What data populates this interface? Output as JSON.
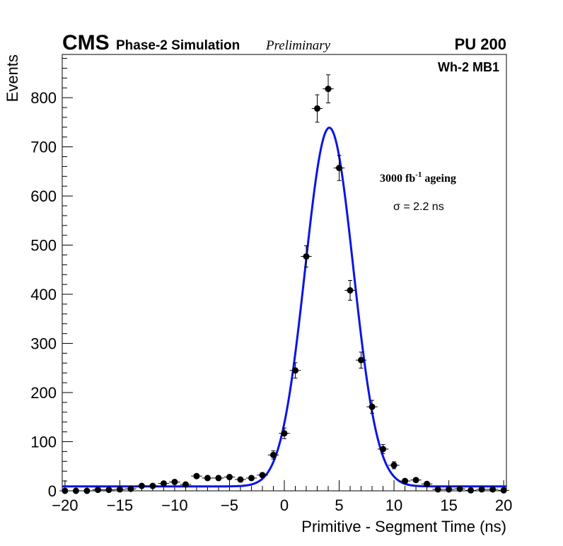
{
  "header": {
    "experiment": "CMS",
    "subtitle": "Phase-2 Simulation",
    "status": "Preliminary",
    "pileup": "PU 200"
  },
  "chart_data": {
    "type": "scatter",
    "title": "",
    "xlabel": "Primitive - Segment Time (ns)",
    "ylabel": "Events",
    "xlim": [
      -20.25,
      20.25
    ],
    "ylim": [
      0,
      888
    ],
    "xticks": [
      -20,
      -15,
      -10,
      -5,
      0,
      5,
      10,
      15,
      20
    ],
    "xtick_labels": [
      "−20",
      "−15",
      "−10",
      "−5",
      "0",
      "5",
      "10",
      "15",
      "20"
    ],
    "yticks": [
      0,
      100,
      200,
      300,
      400,
      500,
      600,
      700,
      800
    ],
    "ytick_labels": [
      "0",
      "100",
      "200",
      "300",
      "400",
      "500",
      "600",
      "700",
      "800"
    ],
    "grid": false,
    "annotations": {
      "region": "Wh-2 MB1",
      "ageing_prefix": "3000 fb",
      "ageing_exponent": "-1",
      "ageing_suffix": " ageing",
      "sigma": "σ = 2.2 ns"
    },
    "series": [
      {
        "kind": "points",
        "x_half_width": 0.5,
        "points": [
          {
            "x": -20,
            "y": 0,
            "err": 0
          },
          {
            "x": -19,
            "y": 0,
            "err": 0
          },
          {
            "x": -18,
            "y": 0,
            "err": 0
          },
          {
            "x": -17,
            "y": 2,
            "err": 1.4
          },
          {
            "x": -16,
            "y": 2,
            "err": 1.4
          },
          {
            "x": -15,
            "y": 3,
            "err": 1.7
          },
          {
            "x": -14,
            "y": 4,
            "err": 2
          },
          {
            "x": -13,
            "y": 10,
            "err": 3.2
          },
          {
            "x": -12,
            "y": 10,
            "err": 3.2
          },
          {
            "x": -11,
            "y": 15,
            "err": 3.9
          },
          {
            "x": -10,
            "y": 18,
            "err": 4.2
          },
          {
            "x": -9,
            "y": 13,
            "err": 3.6
          },
          {
            "x": -8,
            "y": 30,
            "err": 5.5
          },
          {
            "x": -7,
            "y": 26,
            "err": 5.1
          },
          {
            "x": -6,
            "y": 26,
            "err": 5.1
          },
          {
            "x": -5,
            "y": 28,
            "err": 5.3
          },
          {
            "x": -4,
            "y": 23,
            "err": 4.8
          },
          {
            "x": -3,
            "y": 26,
            "err": 5.1
          },
          {
            "x": -2,
            "y": 32,
            "err": 5.7
          },
          {
            "x": -1,
            "y": 73,
            "err": 8.5
          },
          {
            "x": 0,
            "y": 117,
            "err": 10.8
          },
          {
            "x": 1,
            "y": 245,
            "err": 15.7
          },
          {
            "x": 2,
            "y": 477,
            "err": 21.8
          },
          {
            "x": 3,
            "y": 778,
            "err": 27.9
          },
          {
            "x": 4,
            "y": 818,
            "err": 28.6
          },
          {
            "x": 5,
            "y": 657,
            "err": 25.6
          },
          {
            "x": 6,
            "y": 408,
            "err": 20.2
          },
          {
            "x": 7,
            "y": 266,
            "err": 16.3
          },
          {
            "x": 8,
            "y": 171,
            "err": 13.1
          },
          {
            "x": 9,
            "y": 85,
            "err": 9.2
          },
          {
            "x": 10,
            "y": 52,
            "err": 7.2
          },
          {
            "x": 11,
            "y": 20,
            "err": 4.5
          },
          {
            "x": 12,
            "y": 22,
            "err": 4.7
          },
          {
            "x": 13,
            "y": 14,
            "err": 3.7
          },
          {
            "x": 14,
            "y": 3,
            "err": 1.7
          },
          {
            "x": 15,
            "y": 3,
            "err": 1.7
          },
          {
            "x": 16,
            "y": 4,
            "err": 2
          },
          {
            "x": 17,
            "y": 1,
            "err": 1
          },
          {
            "x": 18,
            "y": 3,
            "err": 1.7
          },
          {
            "x": 19,
            "y": 3,
            "err": 1.7
          },
          {
            "x": 20,
            "y": 1,
            "err": 1
          }
        ]
      },
      {
        "kind": "fit",
        "function": "gaussian_plus_constant",
        "color": "#0a14e6",
        "amplitude": 730,
        "mean": 4.1,
        "sigma": 2.2,
        "constant": 9
      }
    ]
  }
}
